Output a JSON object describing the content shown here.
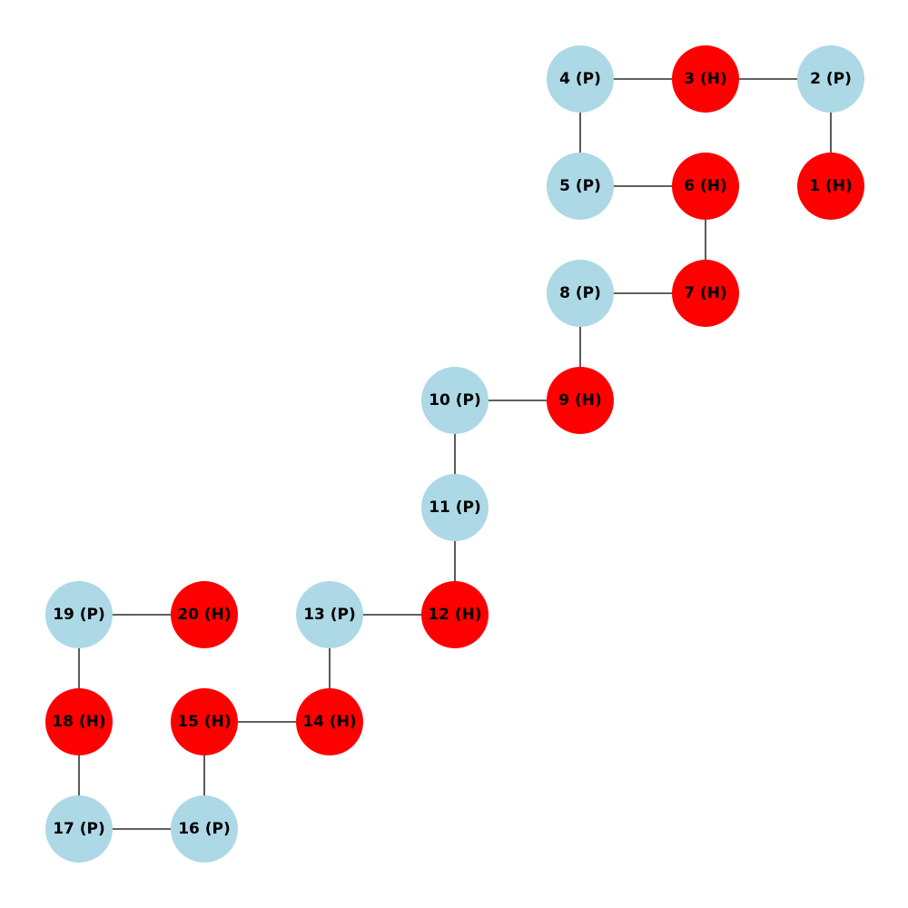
{
  "colors": {
    "H": "#ff0000",
    "P": "#add8e6",
    "edge": "#000000",
    "text": "#000000",
    "background": "#ffffff"
  },
  "residues": [
    {
      "label": "1 (H)",
      "type": "H"
    },
    {
      "label": "2 (P)",
      "type": "P"
    },
    {
      "label": "3 (H)",
      "type": "H"
    },
    {
      "label": "4 (P)",
      "type": "P"
    },
    {
      "label": "5 (P)",
      "type": "P"
    },
    {
      "label": "6 (H)",
      "type": "H"
    },
    {
      "label": "7 (H)",
      "type": "H"
    },
    {
      "label": "8 (P)",
      "type": "P"
    },
    {
      "label": "9 (H)",
      "type": "H"
    },
    {
      "label": "10 (P)",
      "type": "P"
    },
    {
      "label": "11 (P)",
      "type": "P"
    },
    {
      "label": "12 (H)",
      "type": "H"
    },
    {
      "label": "13 (P)",
      "type": "P"
    },
    {
      "label": "14 (H)",
      "type": "H"
    },
    {
      "label": "15 (H)",
      "type": "H"
    },
    {
      "label": "16 (P)",
      "type": "P"
    },
    {
      "label": "17 (P)",
      "type": "P"
    },
    {
      "label": "18 (H)",
      "type": "H"
    },
    {
      "label": "19 (P)",
      "type": "P"
    },
    {
      "label": "20 (H)",
      "type": "H"
    }
  ]
}
